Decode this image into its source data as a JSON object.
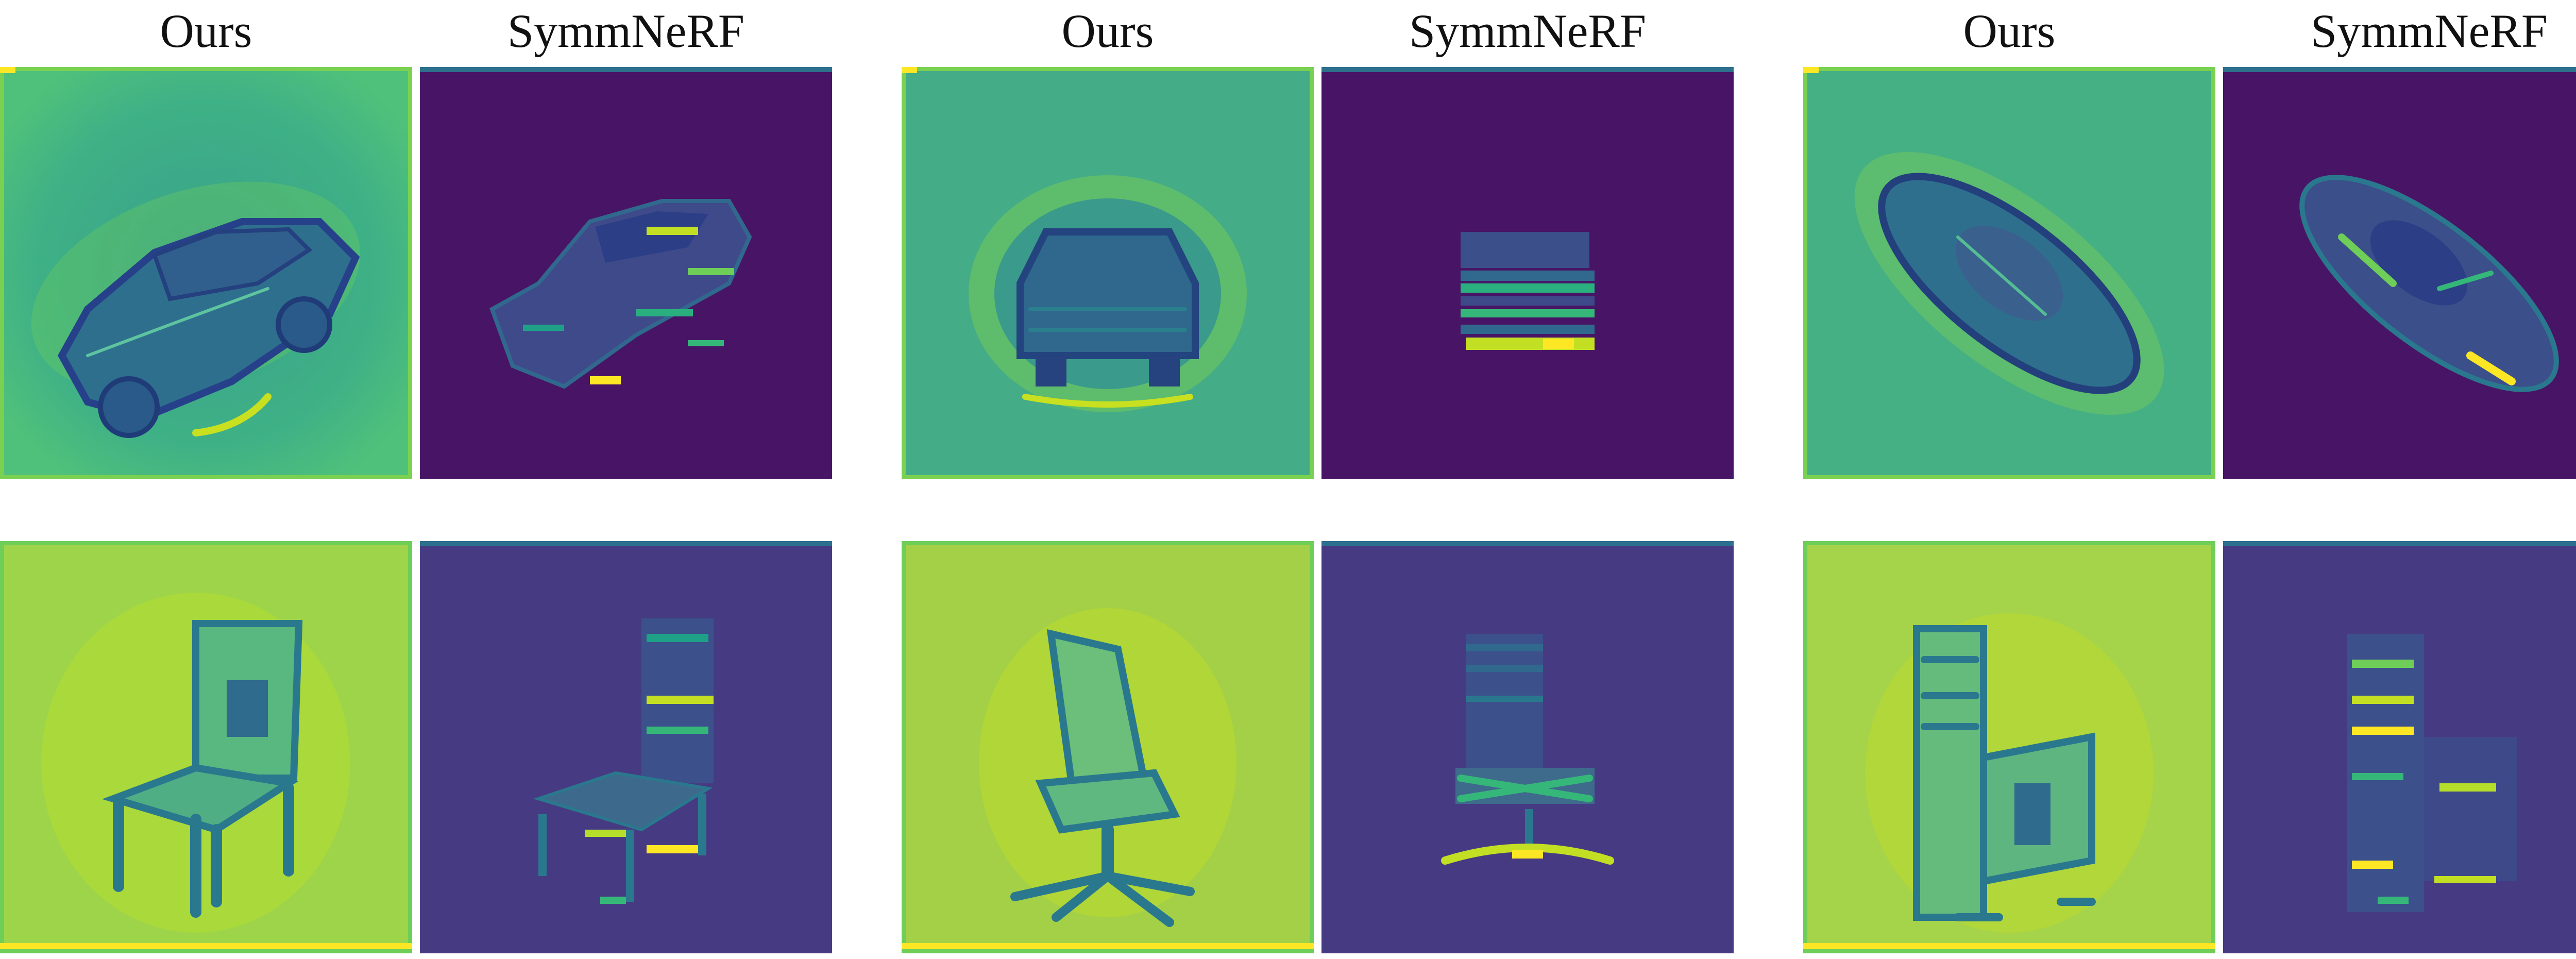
{
  "columns": [
    {
      "label": "Ours"
    },
    {
      "label": "SymmNeRF"
    },
    {
      "label": "Ours"
    },
    {
      "label": "SymmNeRF"
    },
    {
      "label": "Ours"
    },
    {
      "label": "SymmNeRF"
    }
  ],
  "rows": [
    {
      "subject": "car"
    },
    {
      "subject": "chair"
    }
  ],
  "colormap": {
    "ours_car_bg": "#3fad8a",
    "ours_chair_bg": "#a2cf48",
    "symm_car_bg": "#481465",
    "symm_chair_bg": "#463b83",
    "highlight": "#fde725",
    "edge": "#3b528b"
  }
}
